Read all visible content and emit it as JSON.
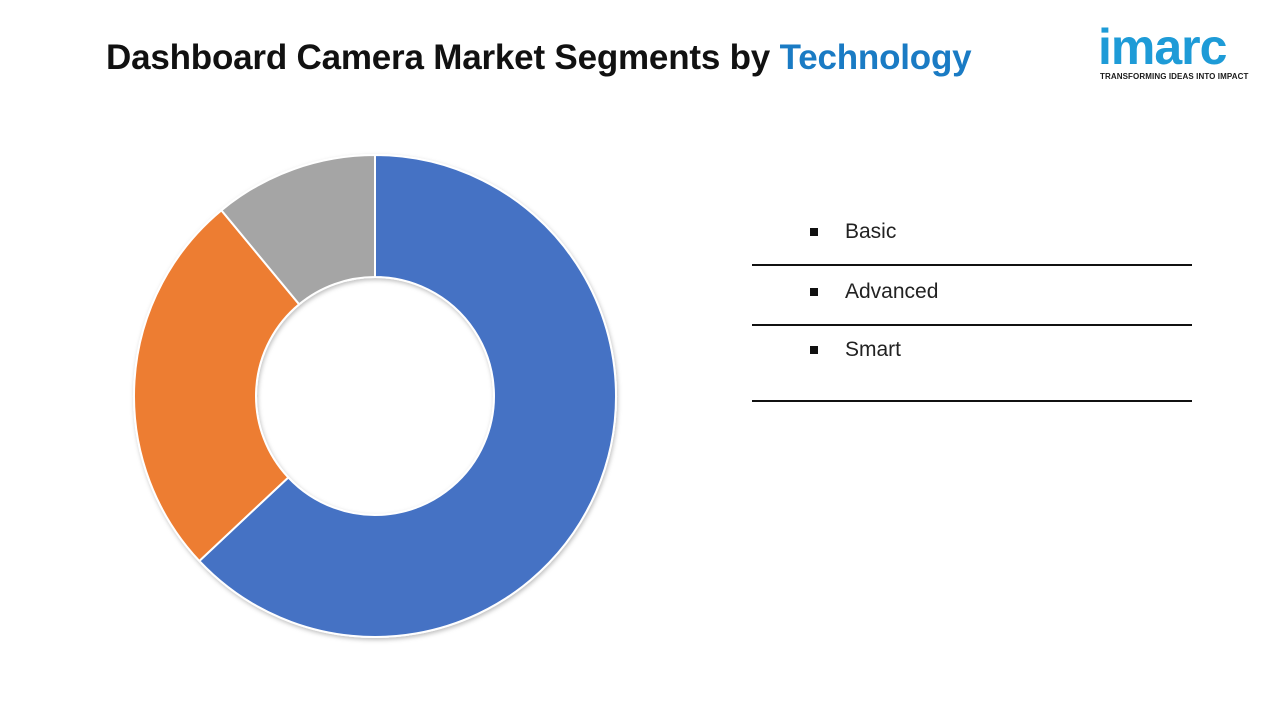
{
  "title": {
    "main": "Dashboard Camera Market Segments by",
    "accent": "Technology"
  },
  "logo": {
    "word": "imarc",
    "tagline": "TRANSFORMING IDEAS INTO IMPACT"
  },
  "colors": {
    "basic": "#4472c4",
    "advanced": "#ed7d31",
    "smart": "#a5a5a5",
    "accent": "#1a7bc4",
    "logo": "#1e9bd7"
  },
  "legend": {
    "items": [
      {
        "label": "Basic"
      },
      {
        "label": "Advanced"
      },
      {
        "label": "Smart"
      }
    ]
  },
  "chart_data": {
    "type": "pie",
    "variant": "donut",
    "title": "Dashboard Camera Market Segments by Technology",
    "categories": [
      "Basic",
      "Advanced",
      "Smart"
    ],
    "values": [
      63,
      26,
      11
    ],
    "colors": [
      "#4472c4",
      "#ed7d31",
      "#a5a5a5"
    ],
    "start": "12 o'clock",
    "direction": "clockwise",
    "legend_position": "right",
    "data_labels": false
  }
}
